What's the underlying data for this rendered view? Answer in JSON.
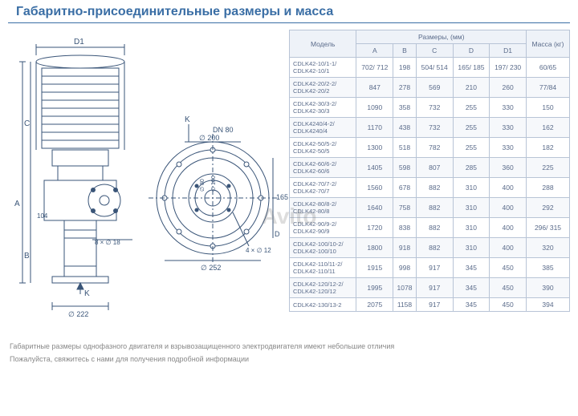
{
  "title": "Габаритно-присоединительные размеры и масса",
  "watermark": "Avito",
  "diagram_labels": {
    "D1": "D1",
    "A": "A",
    "B": "B",
    "C": "C",
    "D": "D",
    "K": "K",
    "DN80": "DN 80",
    "d200": "∅ 200",
    "d160": "∅ 160",
    "d80": "∅ 80",
    "d252": "∅ 252",
    "h165": "165",
    "h104": "104",
    "d222": "∅ 222",
    "holes8": "8 × ∅ 18",
    "holes4": "4 × ∅ 12",
    "arrowK": "K"
  },
  "table": {
    "header_model": "Модель",
    "header_dims": "Размеры, (мм)",
    "header_mass": "Масса (кг)",
    "cols": [
      "A",
      "B",
      "C",
      "D",
      "D1"
    ],
    "rows": [
      {
        "model": "CDLK42-10/1-1/\nCDLK42-10/1",
        "A": "702/ 712",
        "B": "198",
        "C": "504/ 514",
        "D": "165/ 185",
        "D1": "197/ 230",
        "mass": "60/65"
      },
      {
        "model": "CDLK42-20/2-2/\nCDLK42-20/2",
        "A": "847",
        "B": "278",
        "C": "569",
        "D": "210",
        "D1": "260",
        "mass": "77/84"
      },
      {
        "model": "CDLK42-30/3-2/\nCDLK42-30/3",
        "A": "1090",
        "B": "358",
        "C": "732",
        "D": "255",
        "D1": "330",
        "mass": "150"
      },
      {
        "model": "CDLK4240/4-2/\nCDLK4240/4",
        "A": "1170",
        "B": "438",
        "C": "732",
        "D": "255",
        "D1": "330",
        "mass": "162"
      },
      {
        "model": "CDLK42-50/5-2/\nCDLK42-50/5",
        "A": "1300",
        "B": "518",
        "C": "782",
        "D": "255",
        "D1": "330",
        "mass": "182"
      },
      {
        "model": "CDLK42-60/6-2/\nCDLK42-60/6",
        "A": "1405",
        "B": "598",
        "C": "807",
        "D": "285",
        "D1": "360",
        "mass": "225"
      },
      {
        "model": "CDLK42-70/7-2/\nCDLK42-70/7",
        "A": "1560",
        "B": "678",
        "C": "882",
        "D": "310",
        "D1": "400",
        "mass": "288"
      },
      {
        "model": "CDLK42-80/8-2/\nCDLK42-80/8",
        "A": "1640",
        "B": "758",
        "C": "882",
        "D": "310",
        "D1": "400",
        "mass": "292"
      },
      {
        "model": "CDLK42-90/9-2/\nCDLK42-90/9",
        "A": "1720",
        "B": "838",
        "C": "882",
        "D": "310",
        "D1": "400",
        "mass": "296/ 315"
      },
      {
        "model": "CDLK42-100/10-2/\nCDLK42-100/10",
        "A": "1800",
        "B": "918",
        "C": "882",
        "D": "310",
        "D1": "400",
        "mass": "320"
      },
      {
        "model": "CDLK42-110/11-2/\nCDLK42-110/11",
        "A": "1915",
        "B": "998",
        "C": "917",
        "D": "345",
        "D1": "450",
        "mass": "385"
      },
      {
        "model": "CDLK42-120/12-2/\nCDLK42-120/12",
        "A": "1995",
        "B": "1078",
        "C": "917",
        "D": "345",
        "D1": "450",
        "mass": "390"
      },
      {
        "model": "CDLK42-130/13-2",
        "A": "2075",
        "B": "1158",
        "C": "917",
        "D": "345",
        "D1": "450",
        "mass": "394"
      }
    ]
  },
  "footnote1": "Габаритные размеры однофазного двигателя и взрывозащищенного электродвигателя имеют небольшие отличия",
  "footnote2": "Пожалуйста, свяжитесь с нами для получения подробной информации",
  "colors": {
    "heading": "#3a6ea5",
    "border": "#b8c4d6",
    "text": "#5a6b8a",
    "foot": "#888888",
    "row_alt": "#f6f8fb",
    "header_bg": "#eef2f8"
  }
}
